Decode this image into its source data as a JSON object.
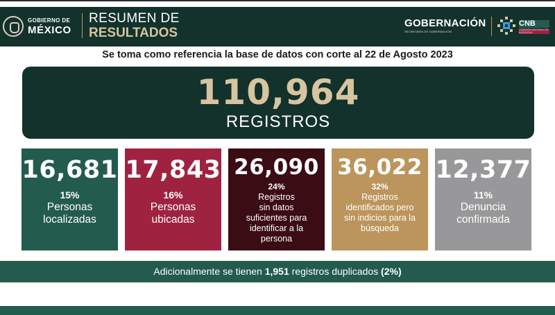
{
  "header": {
    "gob_small": "GOBIERNO DE",
    "gob_big": "MÉXICO",
    "title_line1": "RESUMEN DE",
    "title_line2": "RESULTADOS",
    "right_org": "GOBERNACIÓN",
    "right_org_sub": "SECRETARÍA DE GOBERNACIÓN",
    "cnb": "CNB",
    "cnb_sub": "COMISIÓN NACIONAL DE BÚSQUEDA"
  },
  "subtitle": "Se toma como referencia la base de datos con corte al 22 de Agosto 2023",
  "total": {
    "value": "110,964",
    "label": "REGISTROS"
  },
  "cards": [
    {
      "value": "16,681",
      "pct": "15%",
      "label_lines": [
        "Personas",
        "localizadas"
      ],
      "color": "#235b4e"
    },
    {
      "value": "17,843",
      "pct": "16%",
      "label_lines": [
        "Personas",
        "ubicadas"
      ],
      "color": "#9f2241"
    },
    {
      "value": "26,090",
      "pct": "24%",
      "label_lines": [
        "Registros",
        "sin datos",
        "suficientes para",
        "identificar a la",
        "persona"
      ],
      "color": "#3b0c14"
    },
    {
      "value": "36,022",
      "pct": "32%",
      "label_lines": [
        "Registros",
        "identificados pero",
        "sin indicios para la",
        "búsqueda"
      ],
      "color": "#bc955c"
    },
    {
      "value": "12,377",
      "pct": "11%",
      "label_lines": [
        "Denuncia",
        "confirmada"
      ],
      "color": "#98989a"
    }
  ],
  "bottom": {
    "prefix": "Adicionalmente se tienen ",
    "count": "1,951",
    "middle": " registros duplicados ",
    "pct": "(2%)"
  },
  "colors": {
    "dark_green": "#13322b",
    "green": "#235b4e",
    "gold": "#bc955c",
    "light_gold": "#d7c4a0",
    "wine": "#9f2241",
    "dark_wine": "#3b0c14",
    "gray": "#98989a"
  }
}
